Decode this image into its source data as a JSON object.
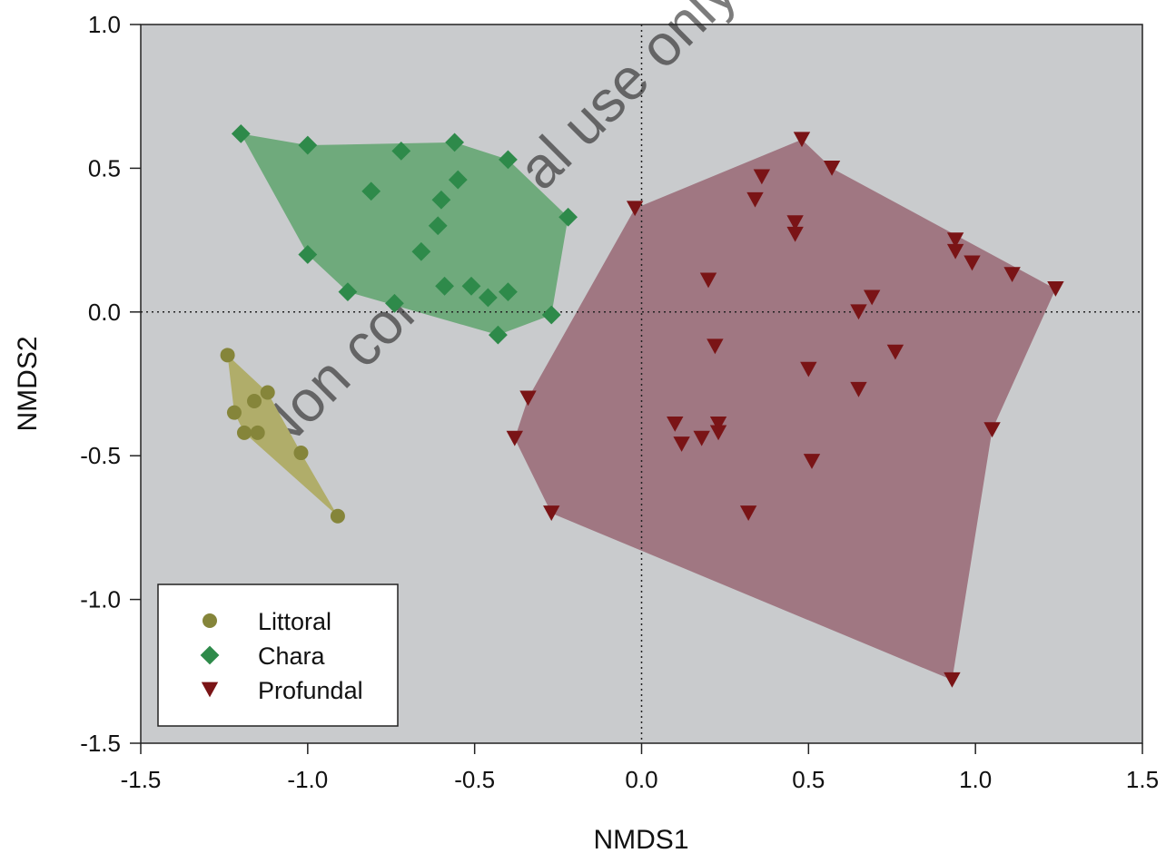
{
  "chart_data": {
    "type": "scatter",
    "title": "",
    "xlabel": "NMDS1",
    "ylabel": "NMDS2",
    "xlim": [
      -1.5,
      1.5
    ],
    "ylim": [
      -1.5,
      1.0
    ],
    "xticks": [
      -1.5,
      -1.0,
      -0.5,
      0.0,
      0.5,
      1.0,
      1.5
    ],
    "xtick_labels": [
      "-1.5",
      "-1.0",
      "-0.5",
      "0.0",
      "0.5",
      "1.0",
      "1.5"
    ],
    "yticks": [
      -1.5,
      -1.0,
      -0.5,
      0.0,
      0.5,
      1.0
    ],
    "ytick_labels": [
      "-1.5",
      "-1.0",
      "-0.5",
      "0.0",
      "0.5",
      "1.0"
    ],
    "grid": false,
    "reference_lines": {
      "x": 0,
      "y": 0
    },
    "background_color": "#c9cbcd",
    "legend_position": "bottom-left",
    "watermark": "Non commercial use only",
    "series": [
      {
        "name": "Littoral",
        "marker": "circle",
        "color": "#85853a",
        "hull_color": "#b0ad6a",
        "points": [
          [
            -1.24,
            -0.15
          ],
          [
            -1.22,
            -0.35
          ],
          [
            -1.19,
            -0.42
          ],
          [
            -1.16,
            -0.31
          ],
          [
            -1.15,
            -0.42
          ],
          [
            -1.12,
            -0.28
          ],
          [
            -1.02,
            -0.49
          ],
          [
            -0.91,
            -0.71
          ]
        ],
        "hull": [
          [
            -1.24,
            -0.15
          ],
          [
            -1.12,
            -0.28
          ],
          [
            -1.02,
            -0.49
          ],
          [
            -0.91,
            -0.71
          ],
          [
            -1.19,
            -0.42
          ],
          [
            -1.22,
            -0.35
          ]
        ]
      },
      {
        "name": "Chara",
        "marker": "diamond",
        "color": "#2e8a4a",
        "hull_color": "#6faa7c",
        "points": [
          [
            -1.2,
            0.62
          ],
          [
            -1.0,
            0.58
          ],
          [
            -0.72,
            0.56
          ],
          [
            -0.56,
            0.59
          ],
          [
            -0.4,
            0.53
          ],
          [
            -0.81,
            0.42
          ],
          [
            -0.55,
            0.46
          ],
          [
            -0.6,
            0.39
          ],
          [
            -0.61,
            0.3
          ],
          [
            -0.22,
            0.33
          ],
          [
            -1.0,
            0.2
          ],
          [
            -0.66,
            0.21
          ],
          [
            -0.88,
            0.07
          ],
          [
            -0.59,
            0.09
          ],
          [
            -0.51,
            0.09
          ],
          [
            -0.46,
            0.05
          ],
          [
            -0.4,
            0.07
          ],
          [
            -0.74,
            0.03
          ],
          [
            -0.27,
            -0.01
          ],
          [
            -0.43,
            -0.08
          ]
        ],
        "hull": [
          [
            -1.2,
            0.62
          ],
          [
            -1.0,
            0.58
          ],
          [
            -0.56,
            0.59
          ],
          [
            -0.4,
            0.53
          ],
          [
            -0.22,
            0.33
          ],
          [
            -0.27,
            -0.01
          ],
          [
            -0.43,
            -0.08
          ],
          [
            -0.88,
            0.07
          ],
          [
            -1.0,
            0.2
          ]
        ]
      },
      {
        "name": "Profundal",
        "marker": "triangle-down",
        "color": "#7a1416",
        "hull_color": "#a07782",
        "points": [
          [
            0.48,
            0.6
          ],
          [
            0.57,
            0.5
          ],
          [
            0.36,
            0.47
          ],
          [
            0.34,
            0.39
          ],
          [
            -0.02,
            0.36
          ],
          [
            0.46,
            0.31
          ],
          [
            0.46,
            0.27
          ],
          [
            0.94,
            0.25
          ],
          [
            0.94,
            0.21
          ],
          [
            0.99,
            0.17
          ],
          [
            1.11,
            0.13
          ],
          [
            1.24,
            0.08
          ],
          [
            0.2,
            0.11
          ],
          [
            0.69,
            0.05
          ],
          [
            0.65,
            0.0
          ],
          [
            0.22,
            -0.12
          ],
          [
            0.76,
            -0.14
          ],
          [
            0.5,
            -0.2
          ],
          [
            0.65,
            -0.27
          ],
          [
            -0.34,
            -0.3
          ],
          [
            -0.38,
            -0.44
          ],
          [
            0.1,
            -0.39
          ],
          [
            0.23,
            -0.39
          ],
          [
            0.23,
            -0.42
          ],
          [
            0.12,
            -0.46
          ],
          [
            0.18,
            -0.44
          ],
          [
            0.51,
            -0.52
          ],
          [
            1.05,
            -0.41
          ],
          [
            -0.27,
            -0.7
          ],
          [
            0.32,
            -0.7
          ],
          [
            0.93,
            -1.28
          ]
        ],
        "hull": [
          [
            -0.02,
            0.36
          ],
          [
            0.48,
            0.6
          ],
          [
            0.57,
            0.5
          ],
          [
            1.24,
            0.08
          ],
          [
            1.05,
            -0.41
          ],
          [
            0.93,
            -1.28
          ],
          [
            -0.27,
            -0.7
          ],
          [
            -0.38,
            -0.44
          ],
          [
            -0.34,
            -0.3
          ]
        ]
      }
    ]
  }
}
